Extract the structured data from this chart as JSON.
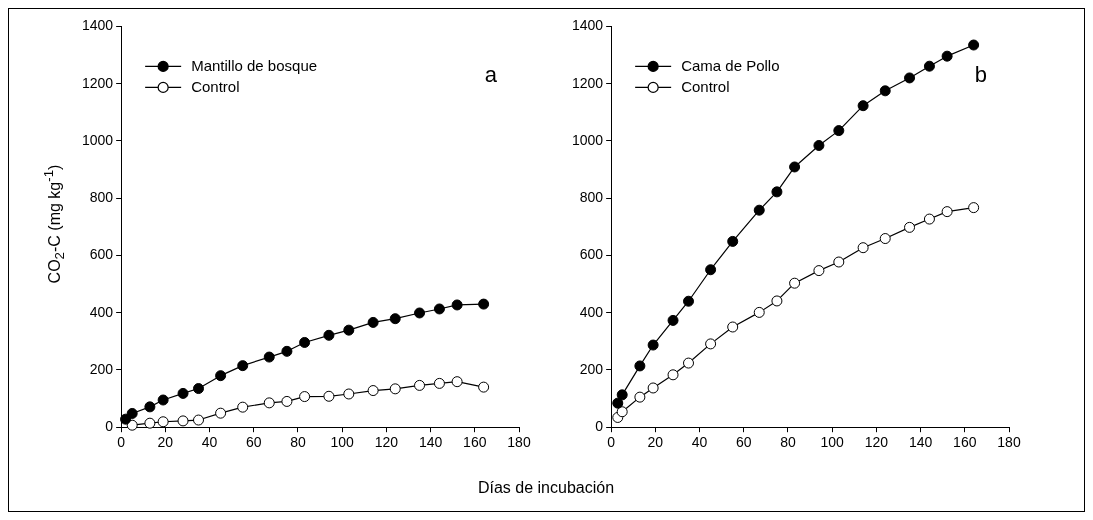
{
  "chart_data": [
    {
      "type": "line",
      "ylabel": "CO$_{2}$-C (mg kg$^{-1}$)",
      "xlabel": "Días de incubación",
      "xlim": [
        0,
        180
      ],
      "xticks": [
        0,
        20,
        40,
        60,
        80,
        100,
        120,
        140,
        160,
        180
      ],
      "ylim": [
        0,
        1400
      ],
      "yticks": [
        0,
        200,
        400,
        600,
        800,
        1000,
        1200,
        1400
      ],
      "legend": "top left",
      "marker": "circle",
      "annotations": [
        "a"
      ],
      "series": [
        {
          "name": "Mantillo de bosque",
          "color": "#000000",
          "x": [
            2,
            5,
            13,
            19,
            28,
            35,
            45,
            55,
            67,
            75,
            83,
            94,
            103,
            114,
            124,
            135,
            144,
            152,
            164
          ],
          "values": [
            28,
            48,
            71,
            95,
            118,
            135,
            180,
            215,
            245,
            265,
            296,
            321,
            339,
            366,
            379,
            399,
            413,
            427,
            430
          ]
        },
        {
          "name": "Control",
          "color": "#000000",
          "x": [
            5,
            13,
            19,
            28,
            35,
            45,
            55,
            67,
            75,
            83,
            94,
            103,
            114,
            124,
            135,
            144,
            152,
            164
          ],
          "values": [
            7,
            14,
            19,
            22,
            25,
            49,
            70,
            85,
            90,
            107,
            108,
            116,
            128,
            134,
            146,
            153,
            159,
            140
          ]
        }
      ]
    },
    {
      "type": "line",
      "xlim": [
        0,
        180
      ],
      "xticks": [
        0,
        20,
        40,
        60,
        80,
        100,
        120,
        140,
        160,
        180
      ],
      "ylim": [
        0,
        1400
      ],
      "yticks": [
        0,
        200,
        400,
        600,
        800,
        1000,
        1200,
        1400
      ],
      "legend": "top left",
      "marker": "circle",
      "annotations": [
        "b"
      ],
      "series": [
        {
          "name": "Cama de Pollo",
          "color": "#000000",
          "x": [
            3,
            5,
            13,
            19,
            28,
            35,
            45,
            55,
            67,
            75,
            83,
            94,
            103,
            114,
            124,
            135,
            144,
            152,
            164
          ],
          "values": [
            84,
            113,
            214,
            287,
            373,
            440,
            550,
            649,
            758,
            822,
            909,
            984,
            1036,
            1123,
            1175,
            1220,
            1261,
            1296,
            1335
          ]
        },
        {
          "name": "Control",
          "color": "#000000",
          "x": [
            3,
            5,
            13,
            19,
            28,
            35,
            45,
            55,
            67,
            75,
            83,
            94,
            103,
            114,
            124,
            135,
            144,
            152,
            164
          ],
          "values": [
            34,
            54,
            105,
            137,
            183,
            224,
            291,
            350,
            401,
            441,
            503,
            547,
            577,
            627,
            659,
            698,
            727,
            753,
            767
          ]
        }
      ]
    }
  ]
}
